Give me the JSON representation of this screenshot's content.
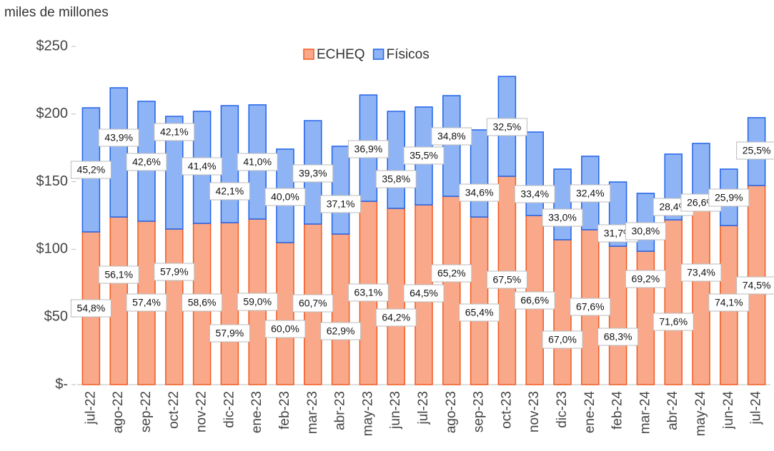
{
  "chart_data": {
    "type": "stacked_bar",
    "subtitle": "miles de millones",
    "categories": [
      "jul-22",
      "ago-22",
      "sep-22",
      "oct-22",
      "nov-22",
      "dic-22",
      "ene-23",
      "feb-23",
      "mar-23",
      "abr-23",
      "may-23",
      "jun-23",
      "jul-23",
      "ago-23",
      "sep-23",
      "oct-23",
      "nov-23",
      "dic-23",
      "ene-24",
      "feb-24",
      "mar-24",
      "abr-24",
      "may-24",
      "jun-24",
      "jul-24"
    ],
    "series": [
      {
        "name": "ECHEQ",
        "color": "#f9a98a",
        "stroke": "#f25a1f",
        "values": [
          112.9,
          123.9,
          120.8,
          115.0,
          119.2,
          119.7,
          122.4,
          105.0,
          118.7,
          111.3,
          135.5,
          130.3,
          132.9,
          139.2,
          123.9,
          154.0,
          125.0,
          107.1,
          114.5,
          102.3,
          98.6,
          121.8,
          130.8,
          117.6,
          147.2
        ],
        "share_labels": [
          "54,8%",
          "56,1%",
          "57,4%",
          "57,9%",
          "58,6%",
          "57,9%",
          "59,0%",
          "60,0%",
          "60,7%",
          "62,9%",
          "63,1%",
          "64,2%",
          "64,5%",
          "65,2%",
          "65,4%",
          "67,5%",
          "66,6%",
          "67,0%",
          "67,6%",
          "68,3%",
          "69,2%",
          "71,6%",
          "73,4%",
          "74,1%",
          "74,5%"
        ]
      },
      {
        "name": "Físicos",
        "color": "#8fb4f5",
        "stroke": "#2163e8",
        "values": [
          91.7,
          95.5,
          88.6,
          83.3,
          82.8,
          86.5,
          84.4,
          69.1,
          76.4,
          64.9,
          78.6,
          71.7,
          72.3,
          74.4,
          64.4,
          73.8,
          61.7,
          52.2,
          54.3,
          47.5,
          42.8,
          48.6,
          47.5,
          41.7,
          50.1
        ],
        "share_labels": [
          "45,2%",
          "43,9%",
          "42,6%",
          "42,1%",
          "41,4%",
          "42,1%",
          "41,0%",
          "40,0%",
          "39,3%",
          "37,1%",
          "36,9%",
          "35,8%",
          "35,5%",
          "34,8%",
          "34,6%",
          "32,5%",
          "33,4%",
          "33,0%",
          "32,4%",
          "31,7%",
          "30,8%",
          "28,4%",
          "26,6%",
          "25,9%",
          "25,5%"
        ]
      }
    ],
    "ylim": [
      0,
      250
    ],
    "yticks": [
      {
        "value": 0,
        "label": "$-"
      },
      {
        "value": 50,
        "label": "$50"
      },
      {
        "value": 100,
        "label": "$100"
      },
      {
        "value": 150,
        "label": "$150"
      },
      {
        "value": 200,
        "label": "$200"
      },
      {
        "value": 250,
        "label": "$250"
      }
    ],
    "legend": "top"
  }
}
